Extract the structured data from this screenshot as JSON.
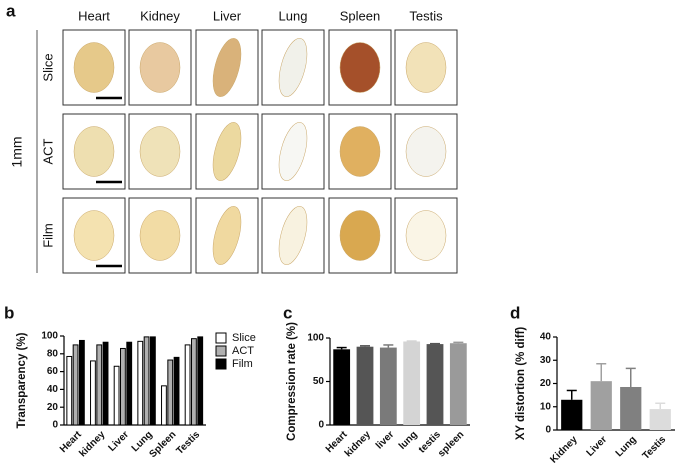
{
  "panel_labels": [
    "a",
    "b",
    "c",
    "d"
  ],
  "panel_a": {
    "columns": [
      "Heart",
      "Kidney",
      "Liver",
      "Lung",
      "Spleen",
      "Testis"
    ],
    "rows": [
      "Slice",
      "ACT",
      "Film"
    ],
    "scale": "1mm"
  },
  "chart_data": [
    {
      "type": "bar",
      "ylabel": "Transparency (%)",
      "categories": [
        "Heart",
        "kidney",
        "Liver",
        "Lung",
        "Spleen",
        "Testis"
      ],
      "series": [
        {
          "name": "Slice",
          "color": "#ffffff",
          "values": [
            77,
            72,
            66,
            94,
            44,
            90
          ]
        },
        {
          "name": "ACT",
          "color": "#b0b0b0",
          "values": [
            90,
            90,
            86,
            99,
            73,
            97
          ]
        },
        {
          "name": "Film",
          "color": "#000000",
          "values": [
            95,
            93,
            93,
            99,
            76,
            99
          ]
        }
      ],
      "ylim": [
        0,
        100
      ],
      "yticks": [
        0,
        20,
        40,
        60,
        80,
        100
      ],
      "legend": "right"
    },
    {
      "type": "bar",
      "ylabel": "Compression rate (%)",
      "categories": [
        "Heart",
        "kidney",
        "liver",
        "lung",
        "testis",
        "spleen"
      ],
      "values": [
        87,
        90,
        89,
        96,
        93,
        94
      ],
      "errors": [
        2,
        1,
        3,
        0.5,
        0.5,
        1
      ],
      "colors": [
        "#000000",
        "#555555",
        "#7a7a7a",
        "#d4d4d4",
        "#555555",
        "#9a9a9a"
      ],
      "ylim": [
        0,
        100
      ],
      "yticks": [
        0,
        50,
        100
      ]
    },
    {
      "type": "bar",
      "ylabel": "XY distortion (% diff)",
      "categories": [
        "Kidney",
        "Liver",
        "Lung",
        "Testis"
      ],
      "values": [
        13,
        21,
        18.5,
        9
      ],
      "errors": [
        4,
        7.5,
        8,
        2.5
      ],
      "colors": [
        "#000000",
        "#a0a0a0",
        "#808080",
        "#dcdcdc"
      ],
      "ylim": [
        0,
        40
      ],
      "yticks": [
        0,
        10,
        20,
        30,
        40
      ]
    }
  ]
}
